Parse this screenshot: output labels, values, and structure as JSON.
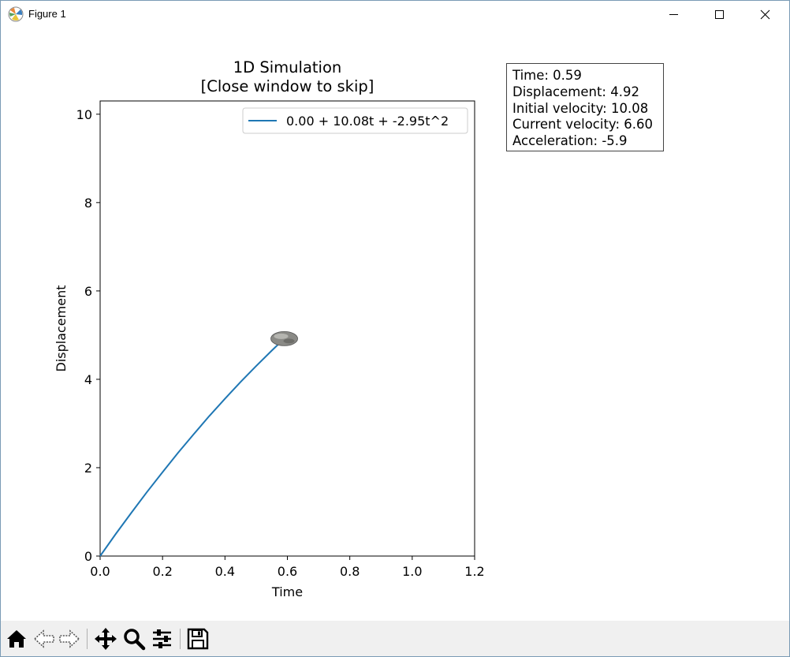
{
  "window": {
    "title": "Figure 1"
  },
  "figure": {
    "title": "1D Simulation",
    "subtitle": "[Close window to skip]"
  },
  "info_box": {
    "lines": [
      "Time: 0.59",
      "Displacement: 4.92",
      "Initial velocity: 10.08",
      "Current velocity: 6.60",
      "Acceleration: -5.9"
    ]
  },
  "chart_data": {
    "type": "line",
    "title": "1D Simulation\n[Close window to skip]",
    "xlabel": "Time",
    "ylabel": "Displacement",
    "xlim": [
      0.0,
      1.2
    ],
    "ylim": [
      0,
      10.3
    ],
    "xticks": [
      "0.0",
      "0.2",
      "0.4",
      "0.6",
      "0.8",
      "1.0",
      "1.2"
    ],
    "yticks": [
      "0",
      "2",
      "4",
      "6",
      "8",
      "10"
    ],
    "grid": false,
    "legend_position": "top-right",
    "series": [
      {
        "name": "0.00 + 10.08t + -2.95t^2",
        "color": "#1f77b4",
        "x": [
          0.0,
          0.05,
          0.1,
          0.15,
          0.2,
          0.25,
          0.3,
          0.35,
          0.4,
          0.45,
          0.5,
          0.55,
          0.59
        ],
        "y": [
          0.0,
          0.5,
          0.98,
          1.45,
          1.9,
          2.34,
          2.76,
          3.17,
          3.56,
          3.94,
          4.3,
          4.65,
          4.92
        ]
      }
    ],
    "marker": {
      "x": 0.59,
      "y": 4.92,
      "icon": "rock-icon"
    }
  },
  "toolbar": {
    "items": [
      "home-icon",
      "back-icon",
      "forward-icon",
      "pan-icon",
      "zoom-icon",
      "configure-icon",
      "save-icon"
    ]
  }
}
